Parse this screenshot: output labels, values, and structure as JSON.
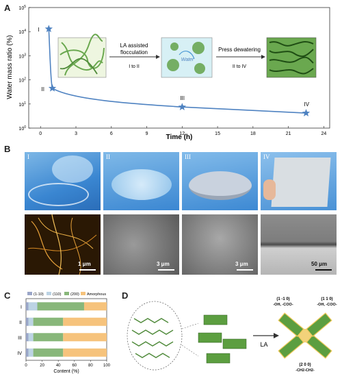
{
  "panelA": {
    "label": "A",
    "step1_text_l1": "LA assisted",
    "step1_text_l2": "flocculation",
    "step1_sub": "I to II",
    "water_label": "Water",
    "step2_text": "Press dewatering",
    "step2_sub": "II to IV",
    "chart_data": {
      "type": "line",
      "xlabel": "Time (h)",
      "ylabel": "Water mass ratio (%)",
      "x_ticks": [
        "0",
        "3",
        "6",
        "9",
        "12",
        "15",
        "18",
        "21",
        "24"
      ],
      "y_ticks": [
        "10^0",
        "10^1",
        "10^2",
        "10^3",
        "10^4",
        "10^5"
      ],
      "yscale": "log",
      "xlim": [
        -1,
        24.5
      ],
      "ylim": [
        1,
        100000
      ],
      "series": [
        {
          "x": [
            0.7,
            1.0,
            12.0,
            22.5
          ],
          "y": [
            13000,
            45,
            7.5,
            4.2
          ],
          "labels": [
            "I",
            "II",
            "III",
            "IV"
          ]
        }
      ]
    }
  },
  "panelB": {
    "label": "B",
    "top": [
      "I",
      "II",
      "III",
      "IV"
    ],
    "scalebars": [
      "1 μm",
      "3 μm",
      "3 μm",
      "50 μm"
    ]
  },
  "panelC": {
    "label": "C",
    "chart_data": {
      "type": "bar",
      "orientation": "horizontal-stacked",
      "categories": [
        "I",
        "II",
        "III",
        "IV"
      ],
      "legend": [
        "(1-10)",
        "(110)",
        "(200)",
        "Amorphous"
      ],
      "colors": [
        "#9aa6c8",
        "#bcd3e4",
        "#88b77a",
        "#f6c37c"
      ],
      "series": [
        {
          "name": "(1-10)",
          "values": [
            3,
            3,
            3,
            3
          ]
        },
        {
          "name": "(110)",
          "values": [
            11,
            6,
            6,
            6
          ]
        },
        {
          "name": "(200)",
          "values": [
            58,
            37,
            37,
            37
          ]
        },
        {
          "name": "Amorphous",
          "values": [
            28,
            54,
            54,
            54
          ]
        }
      ],
      "xlabel": "Content (%)",
      "x_ticks": [
        "0",
        "20",
        "40",
        "60",
        "80",
        "100"
      ],
      "xlim": [
        0,
        100
      ]
    }
  },
  "panelD": {
    "label": "D",
    "arrow": "LA",
    "l1": "(1 -1 0)",
    "l1b": "-OH, -COO-",
    "l2": "(1 1 0)",
    "l2b": "-OH, -COO-",
    "l3": "(2 0 0)",
    "l3b": "-CH2-CH2-"
  }
}
